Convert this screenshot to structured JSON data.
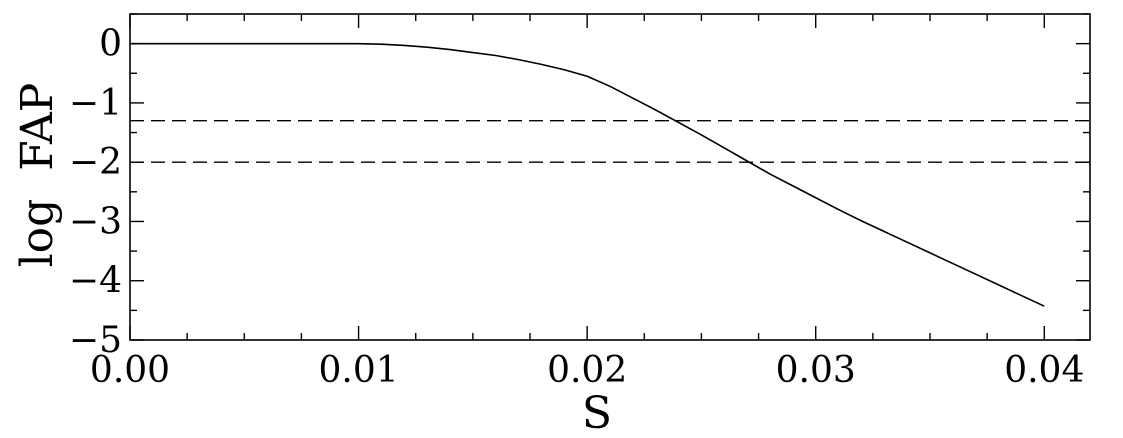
{
  "chart_data": {
    "type": "line",
    "xlabel": "S",
    "ylabel": "log FAP",
    "xlim": [
      0.0,
      0.042
    ],
    "ylim": [
      -5,
      0.5
    ],
    "xticks": [
      0.0,
      0.01,
      0.02,
      0.03,
      0.04
    ],
    "xtick_labels": [
      "0.00",
      "0.01",
      "0.02",
      "0.03",
      "0.04"
    ],
    "yticks": [
      0,
      -1,
      -2,
      -3,
      -4,
      -5
    ],
    "ytick_labels": [
      "0",
      "−1",
      "−2",
      "−3",
      "−4",
      "−5"
    ],
    "grid": false,
    "series": [
      {
        "style": "solid",
        "color": "#000000",
        "x": [
          0.0,
          0.005,
          0.01,
          0.011,
          0.012,
          0.013,
          0.014,
          0.015,
          0.016,
          0.017,
          0.018,
          0.019,
          0.02,
          0.021,
          0.022,
          0.023,
          0.024,
          0.025,
          0.026,
          0.027,
          0.028,
          0.029,
          0.03,
          0.031,
          0.032,
          0.033,
          0.034,
          0.035,
          0.036,
          0.037,
          0.038,
          0.039,
          0.04
        ],
        "y": [
          0.0,
          0.0,
          0.0,
          -0.01,
          -0.03,
          -0.06,
          -0.1,
          -0.15,
          -0.2,
          -0.27,
          -0.35,
          -0.44,
          -0.55,
          -0.72,
          -0.92,
          -1.12,
          -1.33,
          -1.54,
          -1.76,
          -1.98,
          -2.2,
          -2.4,
          -2.6,
          -2.8,
          -2.99,
          -3.17,
          -3.35,
          -3.53,
          -3.71,
          -3.89,
          -4.07,
          -4.25,
          -4.43
        ]
      }
    ],
    "hlines": [
      {
        "y": -1.3,
        "style": "dashed"
      },
      {
        "y": -2.0,
        "style": "dashed"
      }
    ]
  }
}
